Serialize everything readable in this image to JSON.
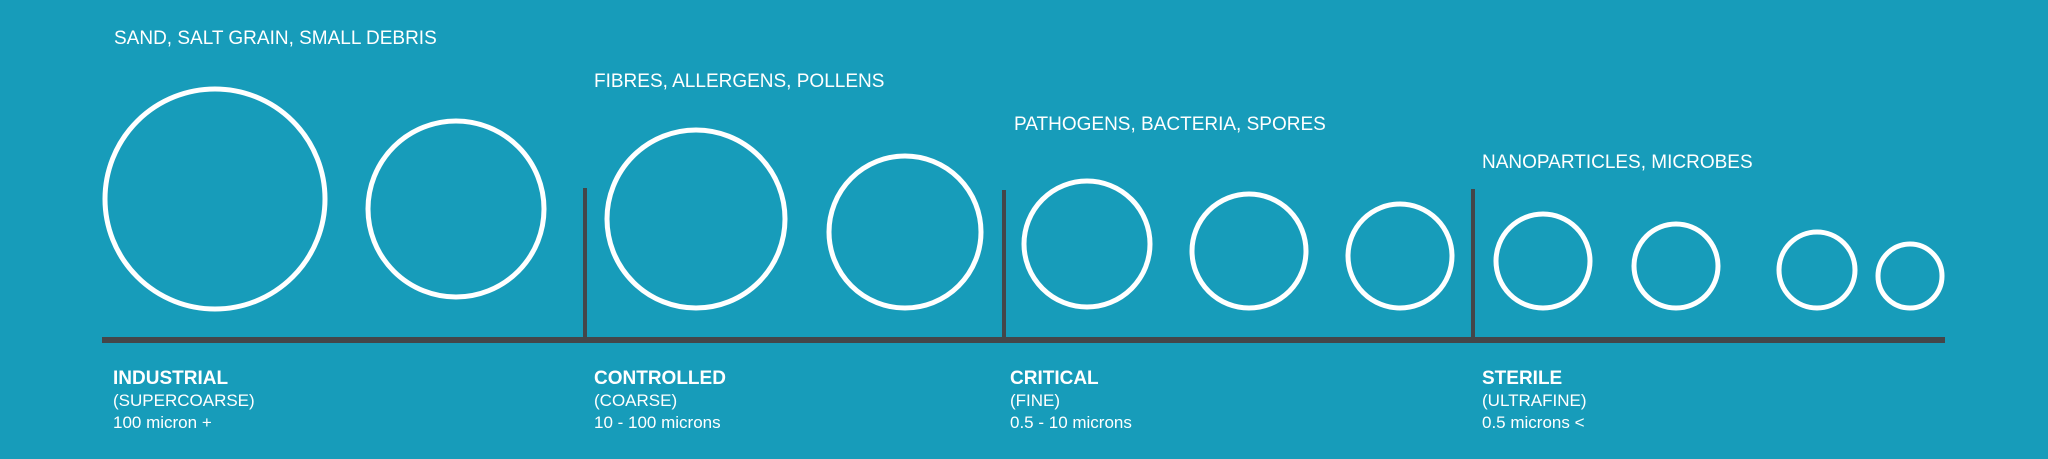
{
  "colors": {
    "background": "#179cba",
    "circles": "#ffffff",
    "axis": "#444649",
    "text": "#ffffff"
  },
  "categories": [
    {
      "examples": "SAND, SALT GRAIN, SMALL DEBRIS",
      "name": "INDUSTRIAL",
      "subtitle": "(SUPERCOARSE)",
      "range": "100 micron +"
    },
    {
      "examples": "FIBRES, ALLERGENS, POLLENS",
      "name": "CONTROLLED",
      "subtitle": "(COARSE)",
      "range": "10 - 100 microns"
    },
    {
      "examples": "PATHOGENS, BACTERIA, SPORES",
      "name": "CRITICAL",
      "subtitle": "(FINE)",
      "range": "0.5 - 10 microns"
    },
    {
      "examples": "NANOPARTICLES, MICROBES",
      "name": "STERILE",
      "subtitle": "(ULTRAFINE)",
      "range": "0.5 microns <"
    }
  ]
}
